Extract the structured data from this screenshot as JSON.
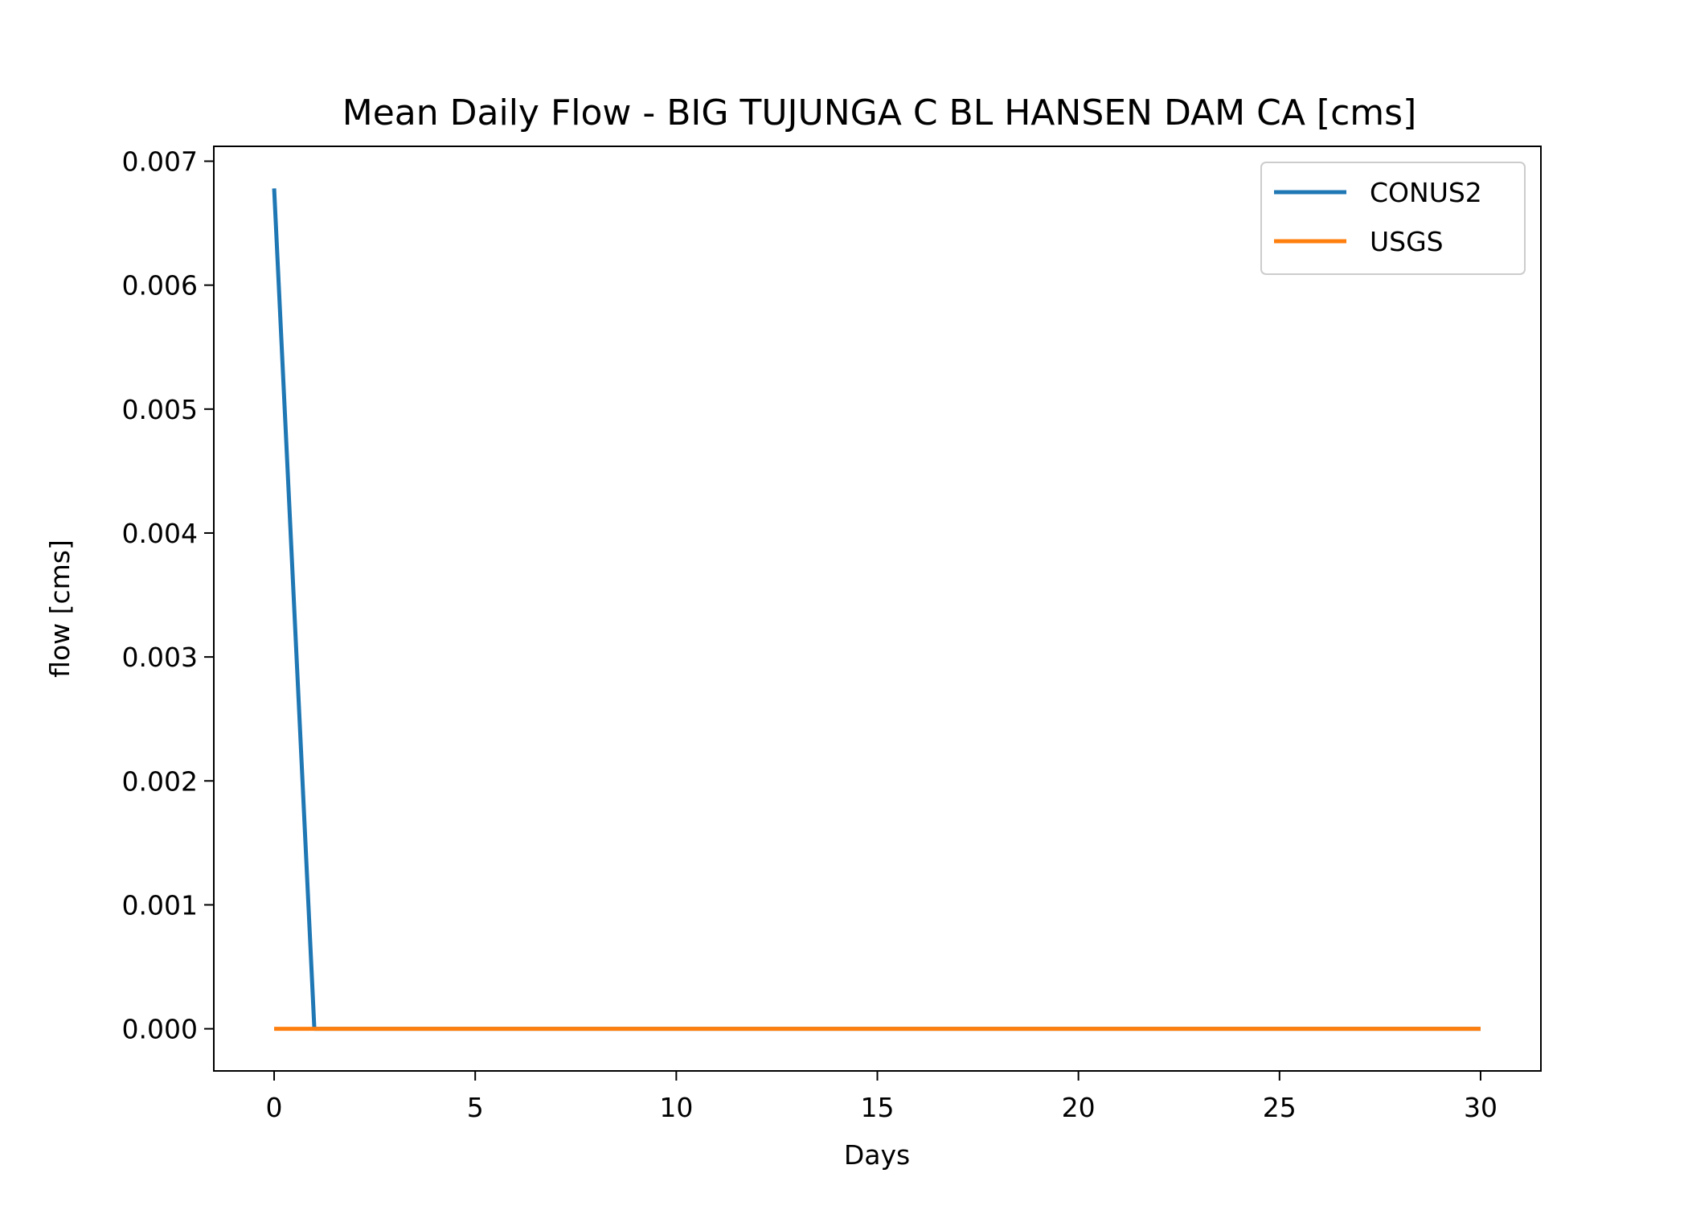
{
  "chart_data": {
    "type": "line",
    "title": "Mean Daily Flow - BIG TUJUNGA C BL HANSEN DAM CA [cms]",
    "xlabel": "Days",
    "ylabel": "flow [cms]",
    "xlim": [
      -1.5,
      31.5
    ],
    "ylim": [
      -0.00034,
      0.00712
    ],
    "x_ticks": [
      0,
      5,
      10,
      15,
      20,
      25,
      30
    ],
    "x_tick_labels": [
      "0",
      "5",
      "10",
      "15",
      "20",
      "25",
      "30"
    ],
    "y_ticks": [
      0,
      0.001,
      0.002,
      0.003,
      0.004,
      0.005,
      0.006,
      0.007
    ],
    "y_tick_labels": [
      "0.000",
      "0.001",
      "0.002",
      "0.003",
      "0.004",
      "0.005",
      "0.006",
      "0.007"
    ],
    "grid": false,
    "legend_position": "top-right",
    "series": [
      {
        "name": "CONUS2",
        "color": "#1f77b4",
        "x": [
          0,
          1,
          2,
          3,
          4,
          5,
          6,
          7,
          8,
          9,
          10,
          11,
          12,
          13,
          14,
          15,
          16,
          17,
          18,
          19,
          20,
          21,
          22,
          23,
          24,
          25,
          26,
          27,
          28,
          29,
          30
        ],
        "y": [
          0.00678,
          0,
          0,
          0,
          0,
          0,
          0,
          0,
          0,
          0,
          0,
          0,
          0,
          0,
          0,
          0,
          0,
          0,
          0,
          0,
          0,
          0,
          0,
          0,
          0,
          0,
          0,
          0,
          0,
          0,
          0
        ]
      },
      {
        "name": "USGS",
        "color": "#ff7f0e",
        "x": [
          0,
          1,
          2,
          3,
          4,
          5,
          6,
          7,
          8,
          9,
          10,
          11,
          12,
          13,
          14,
          15,
          16,
          17,
          18,
          19,
          20,
          21,
          22,
          23,
          24,
          25,
          26,
          27,
          28,
          29,
          30
        ],
        "y": [
          0,
          0,
          0,
          0,
          0,
          0,
          0,
          0,
          0,
          0,
          0,
          0,
          0,
          0,
          0,
          0,
          0,
          0,
          0,
          0,
          0,
          0,
          0,
          0,
          0,
          0,
          0,
          0,
          0,
          0,
          0
        ]
      }
    ]
  }
}
